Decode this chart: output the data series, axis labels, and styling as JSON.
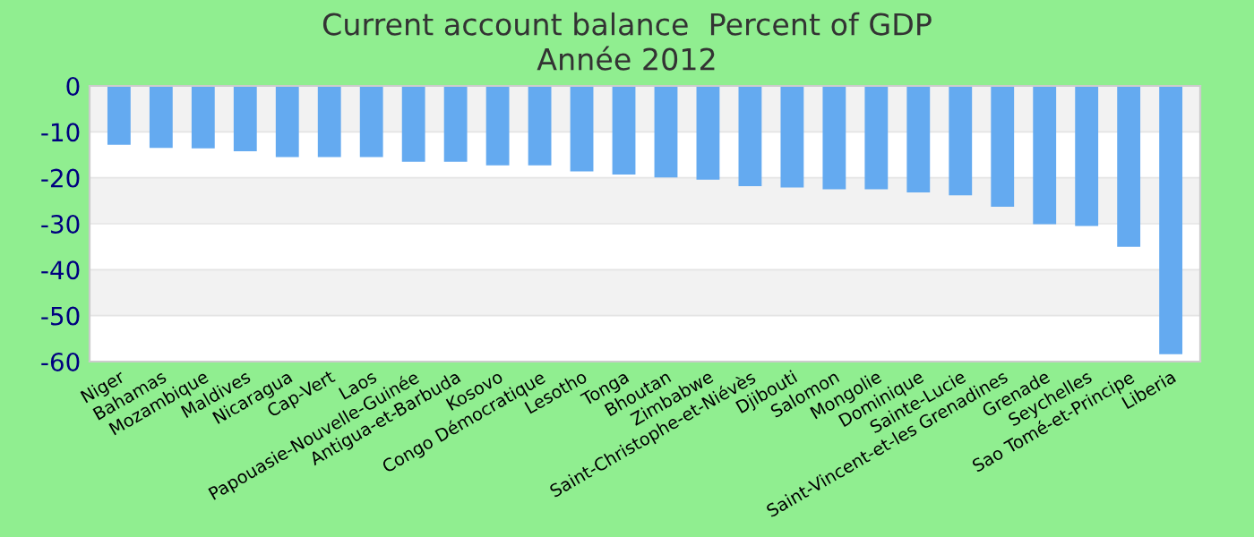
{
  "chart_data": {
    "type": "bar",
    "title": "Current account balance  Percent of GDP",
    "subtitle": "Année 2012",
    "categories": [
      "Niger",
      "Bahamas",
      "Mozambique",
      "Maldives",
      "Nicaragua",
      "Cap-Vert",
      "Laos",
      "Papouasie-Nouvelle-Guinée",
      "Antigua-et-Barbuda",
      "Kosovo",
      "Congo Démocratique",
      "Lesotho",
      "Tonga",
      "Bhoutan",
      "Zimbabwe",
      "Saint-Christophe-et-Niévès",
      "Djibouti",
      "Salomon",
      "Mongolie",
      "Dominique",
      "Sainte-Lucie",
      "Saint-Vincent-et-les Grenadines",
      "Grenade",
      "Seychelles",
      "Sao Tomé-et-Principe",
      "Liberia"
    ],
    "values": [
      -12.8,
      -13.5,
      -13.6,
      -14.2,
      -15.5,
      -15.5,
      -15.5,
      -16.5,
      -16.5,
      -17.3,
      -17.3,
      -18.6,
      -19.3,
      -19.9,
      -20.4,
      -21.8,
      -22.1,
      -22.5,
      -22.5,
      -23.2,
      -23.8,
      -26.3,
      -30.1,
      -30.5,
      -35.0,
      -58.4
    ],
    "color": "#64aaf0",
    "ylim": [
      -60,
      0
    ],
    "yticks": [
      -60,
      -50,
      -40,
      -30,
      -20,
      -10,
      0
    ],
    "grid": "y"
  }
}
